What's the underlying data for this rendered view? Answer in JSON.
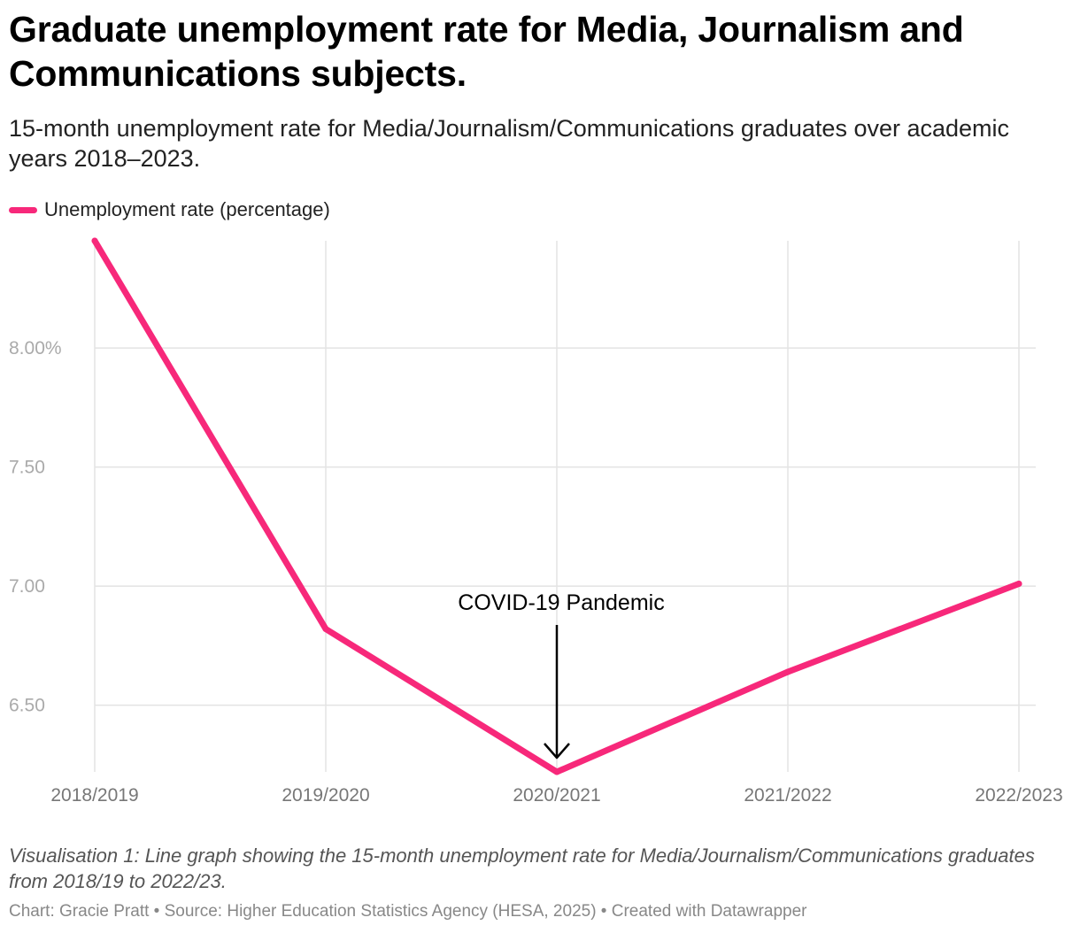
{
  "header": {
    "title": "Graduate unemployment rate for Media, Journalism and Communications subjects.",
    "subtitle": "15-month unemployment rate for Media/Journalism/Communications graduates over academic years 2018–2023."
  },
  "colors": {
    "line": "#f7287a",
    "grid": "#e3e3e3",
    "tick_text": "#aaaaaa",
    "xtick_text": "#777777",
    "annotation": "#000000"
  },
  "chart_data": {
    "type": "line",
    "title": "Graduate unemployment rate for Media, Journalism and Communications subjects.",
    "xlabel": "",
    "ylabel": "",
    "categories": [
      "2018/2019",
      "2019/2020",
      "2020/2021",
      "2021/2022",
      "2022/2023"
    ],
    "series": [
      {
        "name": "Unemployment rate (percentage)",
        "values": [
          8.45,
          6.82,
          6.22,
          6.64,
          7.01
        ]
      }
    ],
    "ylim": [
      6.22,
      8.45
    ],
    "yticks": [
      {
        "value": 8.0,
        "label": "8.00%"
      },
      {
        "value": 7.5,
        "label": "7.50"
      },
      {
        "value": 7.0,
        "label": "7.00"
      },
      {
        "value": 6.5,
        "label": "6.50"
      }
    ],
    "grid": true,
    "legend": "top-left",
    "annotation": {
      "text": "COVID-19 Pandemic",
      "category": "2020/2021"
    }
  },
  "footer": {
    "caption": "Visualisation 1: Line graph showing the 15-month unemployment rate for Media/Journalism/Communications graduates from 2018/19 to 2022/23.",
    "credit_author": "Chart: Gracie Pratt",
    "credit_source": "Source: Higher Education Statistics Agency (HESA, 2025)",
    "credit_tool": "Created with Datawrapper",
    "separator": " • "
  }
}
